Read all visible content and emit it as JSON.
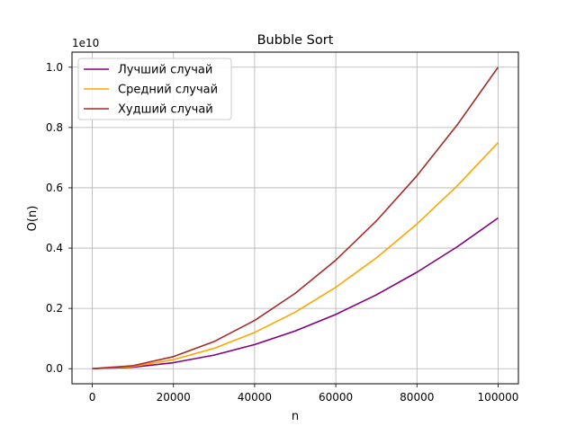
{
  "chart_data": {
    "type": "line",
    "title": "Bubble Sort",
    "xlabel": "n",
    "ylabel": "O(n)",
    "y_offset_label": "1e10",
    "xlim": [
      -5000,
      105000
    ],
    "ylim": [
      -0.05,
      1.05
    ],
    "y_scale_note": "values in units of 1e10",
    "x_ticks": [
      0,
      20000,
      40000,
      60000,
      80000,
      100000
    ],
    "x_tick_labels": [
      "0",
      "20000",
      "40000",
      "60000",
      "80000",
      "100000"
    ],
    "y_ticks": [
      0.0,
      0.2,
      0.4,
      0.6,
      0.8,
      1.0
    ],
    "y_tick_labels": [
      "0.0",
      "0.2",
      "0.4",
      "0.6",
      "0.8",
      "1.0"
    ],
    "grid": true,
    "legend_position": "upper-left",
    "x": [
      0,
      10000,
      20000,
      30000,
      40000,
      50000,
      60000,
      70000,
      80000,
      90000,
      100000
    ],
    "series": [
      {
        "name": "Лучший случай",
        "color": "#800080",
        "values": [
          0.0,
          0.005,
          0.02,
          0.045,
          0.08,
          0.125,
          0.18,
          0.245,
          0.32,
          0.405,
          0.5
        ]
      },
      {
        "name": "Средний случай",
        "color": "#FFA500",
        "values": [
          0.0,
          0.0075,
          0.03,
          0.0675,
          0.12,
          0.1875,
          0.27,
          0.3675,
          0.48,
          0.6075,
          0.75
        ]
      },
      {
        "name": "Худший случай",
        "color": "#A52A2A",
        "values": [
          0.0,
          0.01,
          0.04,
          0.09,
          0.16,
          0.25,
          0.36,
          0.49,
          0.64,
          0.81,
          1.0
        ]
      }
    ]
  }
}
